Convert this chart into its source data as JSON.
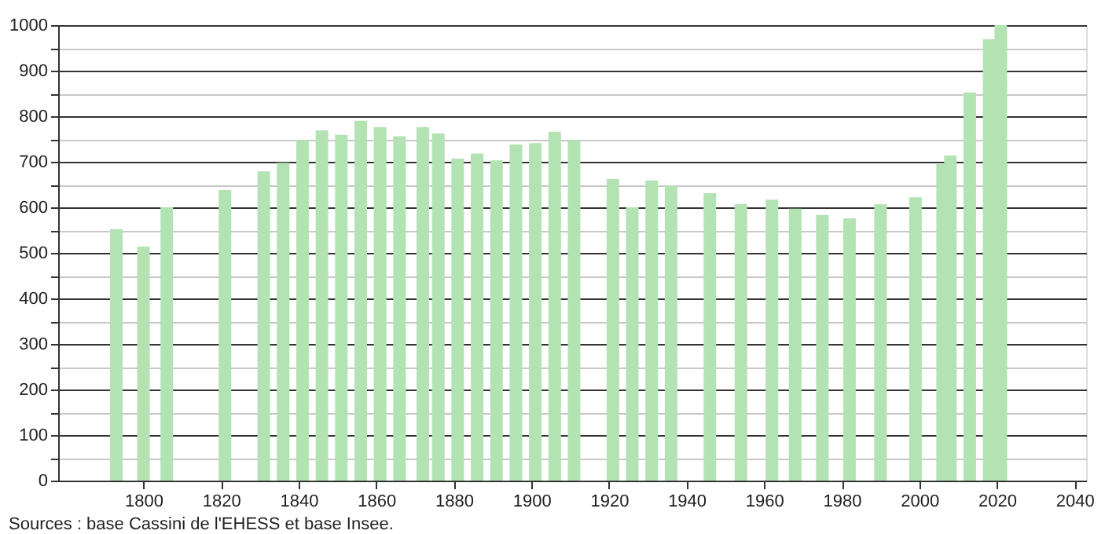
{
  "chart_data": {
    "type": "bar",
    "color": "#b3e3b3",
    "x": [
      1793,
      1800,
      1806,
      1821,
      1831,
      1836,
      1841,
      1846,
      1851,
      1856,
      1861,
      1866,
      1872,
      1876,
      1881,
      1886,
      1891,
      1896,
      1901,
      1906,
      1911,
      1921,
      1926,
      1931,
      1936,
      1946,
      1954,
      1962,
      1968,
      1975,
      1982,
      1990,
      1999,
      2006,
      2008,
      2013,
      2018,
      2021
    ],
    "values": [
      552,
      514,
      600,
      638,
      679,
      698,
      747,
      769,
      759,
      790,
      776,
      756,
      776,
      762,
      707,
      718,
      703,
      738,
      741,
      766,
      747,
      662,
      600,
      659,
      647,
      631,
      607,
      617,
      597,
      583,
      576,
      607,
      622,
      695,
      714,
      852,
      969,
      1000
    ],
    "xlim": [
      1778,
      2043
    ],
    "xticks": [
      1800,
      1820,
      1840,
      1860,
      1880,
      1900,
      1920,
      1940,
      1960,
      1980,
      2000,
      2020,
      2040
    ],
    "ylim": [
      0,
      1000
    ],
    "yticks": [
      0,
      {
        "value": 50,
        "label": null
      },
      100,
      {
        "value": 150,
        "label": null
      },
      200,
      {
        "value": 250,
        "label": null
      },
      300,
      {
        "value": 350,
        "label": null
      },
      400,
      {
        "value": 450,
        "label": null
      },
      500,
      {
        "value": 550,
        "label": null
      },
      600,
      {
        "value": 650,
        "label": null
      },
      700,
      {
        "value": 750,
        "label": null
      },
      800,
      {
        "value": 850,
        "label": null
      },
      900,
      {
        "value": 950,
        "label": null
      },
      1000
    ],
    "grid": "y",
    "annotations": [
      "Sources : base Cassini de l'EHESS et base Insee."
    ]
  }
}
